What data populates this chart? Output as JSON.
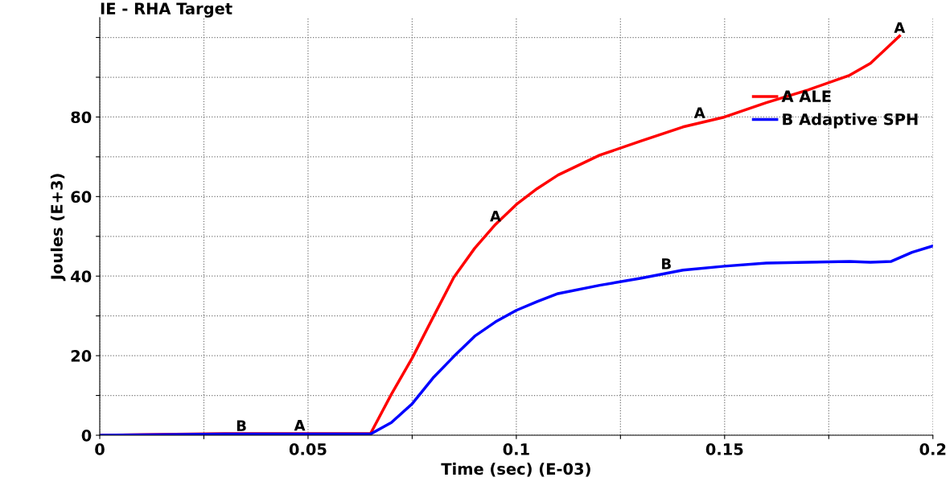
{
  "chart_data": {
    "type": "line",
    "title": "IE - RHA Target",
    "xlabel": "Time (sec) (E-03)",
    "ylabel": "Joules (E+3)",
    "xlim": [
      0,
      0.2
    ],
    "ylim": [
      0,
      105
    ],
    "xticks": [
      0,
      {
        "value": 0.025,
        "label": null
      },
      0.05,
      {
        "value": 0.075,
        "label": null
      },
      0.1,
      {
        "value": 0.125,
        "label": null
      },
      0.15,
      {
        "value": 0.175,
        "label": null
      },
      0.2
    ],
    "yticks": [
      0,
      {
        "value": 10,
        "label": null
      },
      20,
      {
        "value": 30,
        "label": null
      },
      40,
      {
        "value": 50,
        "label": null
      },
      60,
      {
        "value": 70,
        "label": null
      },
      80,
      {
        "value": 90,
        "label": null
      },
      {
        "value": 100,
        "label": null
      }
    ],
    "grid": true,
    "legend": "top right",
    "line_style": "solid",
    "marker": "none",
    "series": [
      {
        "name": "A ALE",
        "color": "#ff0000",
        "x": [
          0,
          0.03,
          0.065,
          0.07,
          0.075,
          0.08,
          0.085,
          0.09,
          0.095,
          0.1,
          0.105,
          0.11,
          0.12,
          0.13,
          0.14,
          0.15,
          0.16,
          0.17,
          0.18,
          0.185,
          0.19,
          0.192
        ],
        "values": [
          0,
          0.4,
          0.4,
          10.3,
          19.4,
          29.6,
          39.7,
          47,
          53,
          58,
          62,
          65.4,
          70.4,
          74,
          77.5,
          80,
          83.6,
          86.8,
          90.5,
          93.5,
          98.4,
          100.4
        ]
      },
      {
        "name": "B Adaptive SPH",
        "color": "#0000ff",
        "x": [
          0,
          0.03,
          0.065,
          0.07,
          0.075,
          0.08,
          0.085,
          0.09,
          0.095,
          0.1,
          0.105,
          0.11,
          0.12,
          0.13,
          0.14,
          0.15,
          0.16,
          0.17,
          0.18,
          0.185,
          0.19,
          0.195,
          0.2
        ],
        "values": [
          0,
          0.3,
          0.3,
          3.2,
          7.9,
          14.4,
          19.8,
          24.9,
          28.5,
          31.4,
          33.6,
          35.6,
          37.7,
          39.5,
          41.5,
          42.5,
          43.3,
          43.5,
          43.7,
          43.5,
          43.7,
          46,
          47.6
        ]
      }
    ],
    "annotations": [
      {
        "text": "A",
        "x": 0.048,
        "y": 0.4
      },
      {
        "text": "A",
        "x": 0.095,
        "y": 53
      },
      {
        "text": "A",
        "x": 0.144,
        "y": 79
      },
      {
        "text": "A",
        "x": 0.192,
        "y": 100.4
      },
      {
        "text": "B",
        "x": 0.034,
        "y": 0.3
      },
      {
        "text": "B",
        "x": 0.136,
        "y": 41
      }
    ]
  }
}
